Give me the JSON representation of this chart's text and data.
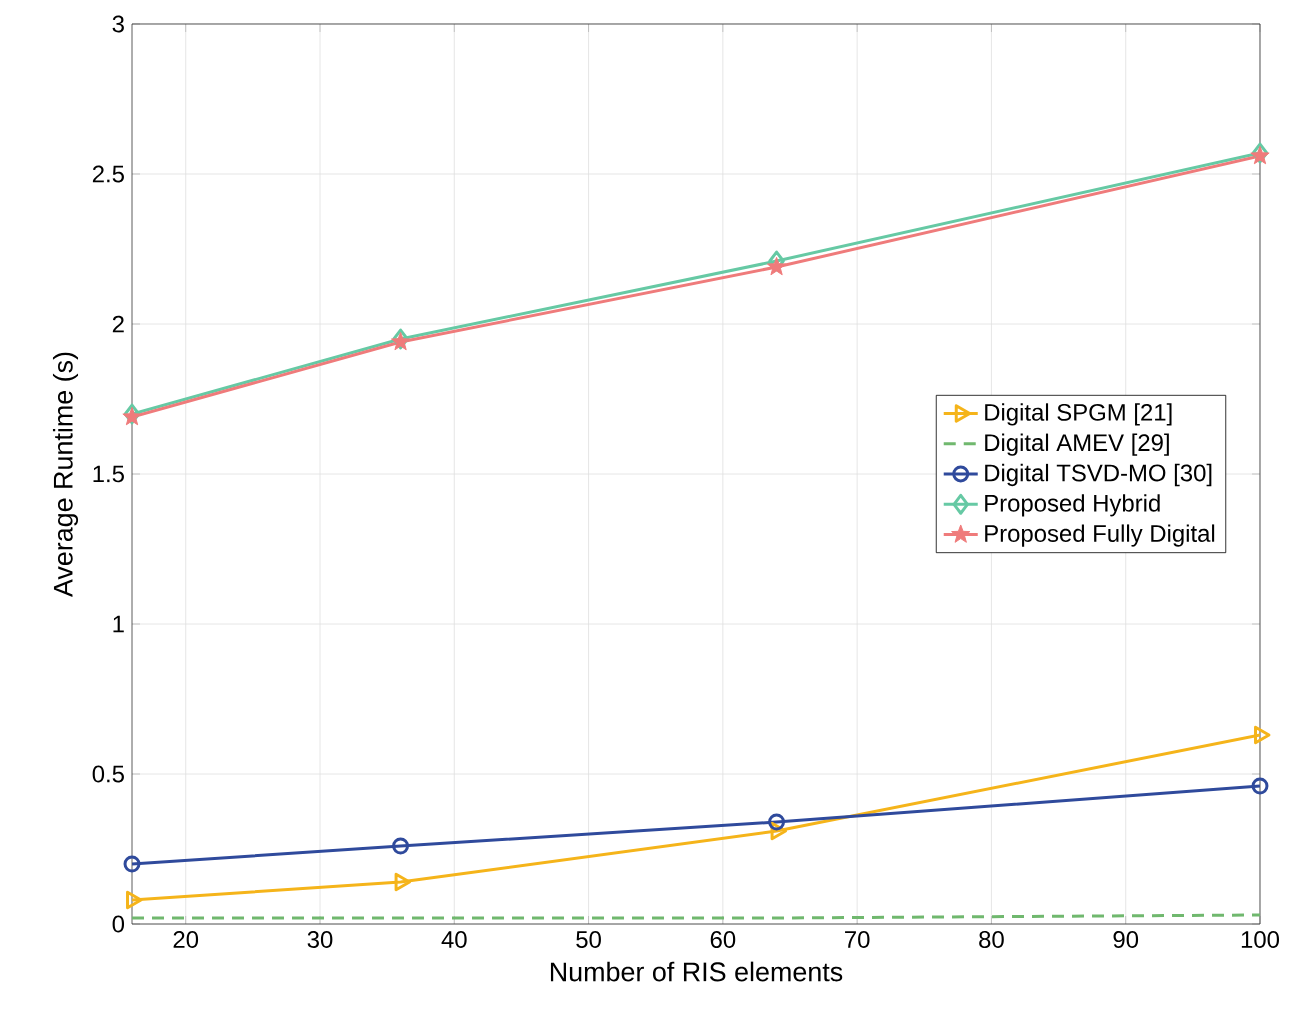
{
  "chart_data": {
    "type": "line",
    "xlabel": "Number of RIS elements",
    "ylabel": "Average Runtime (s)",
    "x": [
      16,
      36,
      64,
      100
    ],
    "xlim": [
      16,
      100
    ],
    "xticks": [
      20,
      30,
      40,
      50,
      60,
      70,
      80,
      90,
      100
    ],
    "ylim": [
      0,
      3
    ],
    "yticks": [
      0,
      0.5,
      1,
      1.5,
      2,
      2.5,
      3
    ],
    "grid": true,
    "legend": "right",
    "series": [
      {
        "name": "Digital SPGM [21]",
        "color": "#f5b41a",
        "marker": "triangle",
        "line_style": "solid",
        "values": [
          0.08,
          0.14,
          0.31,
          0.63
        ]
      },
      {
        "name": "Digital AMEV [29]",
        "color": "#70b86e",
        "marker": "none",
        "line_style": "dashed",
        "values": [
          0.02,
          0.02,
          0.02,
          0.03
        ]
      },
      {
        "name": "Digital TSVD-MO [30]",
        "color": "#2f4a9c",
        "marker": "circle",
        "line_style": "solid",
        "values": [
          0.2,
          0.26,
          0.34,
          0.46
        ]
      },
      {
        "name": "Proposed Hybrid",
        "color": "#66c9a4",
        "marker": "diamond",
        "line_style": "solid",
        "values": [
          1.7,
          1.95,
          2.21,
          2.57
        ]
      },
      {
        "name": "Proposed Fully Digital",
        "color": "#ef7b7b",
        "marker": "star",
        "line_style": "solid",
        "values": [
          1.69,
          1.94,
          2.19,
          2.56
        ]
      }
    ]
  }
}
